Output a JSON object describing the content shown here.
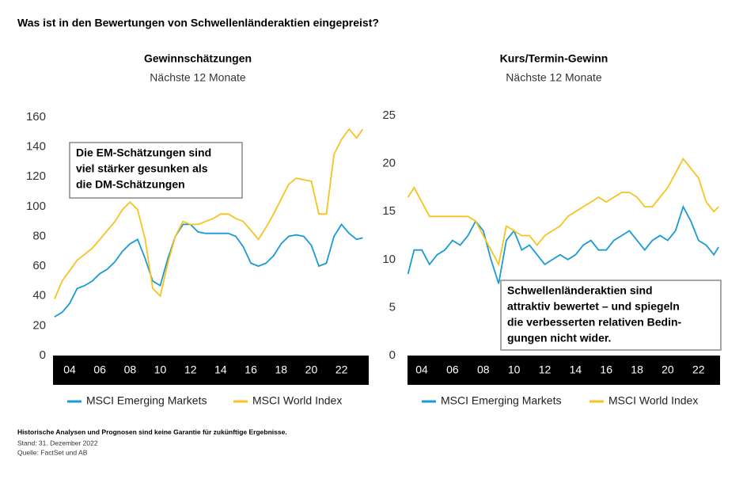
{
  "page_title": "Was ist in den Bewertungen von Schwellenländeraktien eingepreist?",
  "footnotes": [
    "Historische Analysen und Prognosen sind keine Garantie für zukünftige Ergebnisse.",
    "Stand: 31. Dezember 2022",
    "Quelle: FactSet und AB"
  ],
  "chart_data": [
    {
      "type": "line",
      "title": "Gewinnschätzungen",
      "subtitle": "Nächste 12 Monate",
      "annotation": [
        "Die EM-Schätzungen sind",
        "viel stärker gesunken als",
        "die DM-Schätzungen"
      ],
      "x": [
        2003,
        2003.5,
        2004,
        2004.5,
        2005,
        2005.5,
        2006,
        2006.5,
        2007,
        2007.5,
        2008,
        2008.5,
        2009,
        2009.5,
        2010,
        2010.5,
        2011,
        2011.5,
        2012,
        2012.5,
        2013,
        2013.5,
        2014,
        2014.5,
        2015,
        2015.5,
        2016,
        2016.5,
        2017,
        2017.5,
        2018,
        2018.5,
        2019,
        2019.5,
        2020,
        2020.5,
        2021,
        2021.5,
        2022,
        2022.5,
        2023,
        2023.4
      ],
      "series": [
        {
          "name": "MSCI Emerging Markets",
          "color": "#1a9ad6",
          "values": [
            26,
            29,
            35,
            45,
            47,
            50,
            55,
            58,
            63,
            70,
            75,
            78,
            65,
            50,
            47,
            65,
            80,
            88,
            88,
            83,
            82,
            82,
            82,
            82,
            80,
            73,
            62,
            60,
            62,
            67,
            75,
            80,
            81,
            80,
            74,
            60,
            62,
            80,
            88,
            82,
            78,
            79
          ]
        },
        {
          "name": "MSCI World Index",
          "color": "#f7c31e",
          "values": [
            38,
            50,
            57,
            64,
            68,
            72,
            78,
            84,
            90,
            98,
            103,
            98,
            78,
            45,
            40,
            62,
            80,
            90,
            88,
            88,
            90,
            92,
            95,
            95,
            92,
            90,
            84,
            78,
            86,
            95,
            105,
            115,
            119,
            118,
            117,
            95,
            95,
            135,
            145,
            152,
            146,
            152
          ]
        }
      ],
      "xlim": [
        2002.9,
        2023.8
      ],
      "xticks": [
        {
          "value": 2004,
          "label": "04"
        },
        {
          "value": 2006,
          "label": "06"
        },
        {
          "value": 2008,
          "label": "08"
        },
        {
          "value": 2010,
          "label": "10"
        },
        {
          "value": 2012,
          "label": "12"
        },
        {
          "value": 2014,
          "label": "14"
        },
        {
          "value": 2016,
          "label": "16"
        },
        {
          "value": 2018,
          "label": "18"
        },
        {
          "value": 2020,
          "label": "20"
        },
        {
          "value": 2022,
          "label": "22"
        }
      ],
      "ylim": [
        0,
        160
      ],
      "yticks": [
        0,
        20,
        40,
        60,
        80,
        100,
        120,
        140,
        160
      ]
    },
    {
      "type": "line",
      "title": "Kurs/Termin-Gewinn",
      "subtitle": "Nächste 12 Monate",
      "annotation": [
        "Schwellenländeraktien sind",
        "attraktiv bewertet – und spiegeln",
        "die verbesserten relativen Bedin-",
        "gungen nicht wider."
      ],
      "x": [
        2003.1,
        2003.5,
        2004,
        2004.5,
        2005,
        2005.5,
        2006,
        2006.5,
        2007,
        2007.5,
        2008,
        2008.5,
        2009,
        2009.5,
        2010,
        2010.5,
        2011,
        2011.5,
        2012,
        2012.5,
        2013,
        2013.5,
        2014,
        2014.5,
        2015,
        2015.5,
        2016,
        2016.5,
        2017,
        2017.5,
        2018,
        2018.5,
        2019,
        2019.5,
        2020,
        2020.5,
        2021,
        2021.5,
        2022,
        2022.5,
        2023,
        2023.3
      ],
      "series": [
        {
          "name": "MSCI Emerging Markets",
          "color": "#1a9ad6",
          "values": [
            8.5,
            11,
            11,
            9.5,
            10.5,
            11,
            12,
            11.5,
            12.5,
            14,
            13,
            10,
            7.5,
            12,
            13,
            11,
            11.5,
            10.5,
            9.5,
            10,
            10.5,
            10,
            10.5,
            11.5,
            12,
            11,
            11,
            12,
            12.5,
            13,
            12,
            11,
            12,
            12.5,
            12,
            13,
            15.5,
            14,
            12,
            11.5,
            10.5,
            11.3
          ]
        },
        {
          "name": "MSCI World Index",
          "color": "#f7c31e",
          "values": [
            16.5,
            17.5,
            16,
            14.5,
            14.5,
            14.5,
            14.5,
            14.5,
            14.5,
            14,
            12.5,
            11,
            9.5,
            13.5,
            13,
            12.5,
            12.5,
            11.5,
            12.5,
            13,
            13.5,
            14.5,
            15,
            15.5,
            16,
            16.5,
            16,
            16.5,
            17,
            17,
            16.5,
            15.5,
            15.5,
            16.5,
            17.5,
            19,
            20.5,
            19.5,
            18.5,
            16,
            15,
            15.5
          ]
        }
      ],
      "xlim": [
        2003.07,
        2023.4
      ],
      "xticks": [
        {
          "value": 2004,
          "label": "04"
        },
        {
          "value": 2006,
          "label": "06"
        },
        {
          "value": 2008,
          "label": "08"
        },
        {
          "value": 2010,
          "label": "10"
        },
        {
          "value": 2012,
          "label": "12"
        },
        {
          "value": 2014,
          "label": "14"
        },
        {
          "value": 2016,
          "label": "16"
        },
        {
          "value": 2018,
          "label": "18"
        },
        {
          "value": 2020,
          "label": "20"
        },
        {
          "value": 2022,
          "label": "22"
        }
      ],
      "ylim": [
        0,
        25
      ],
      "yticks": [
        0,
        5,
        10,
        15,
        20,
        25
      ]
    }
  ]
}
